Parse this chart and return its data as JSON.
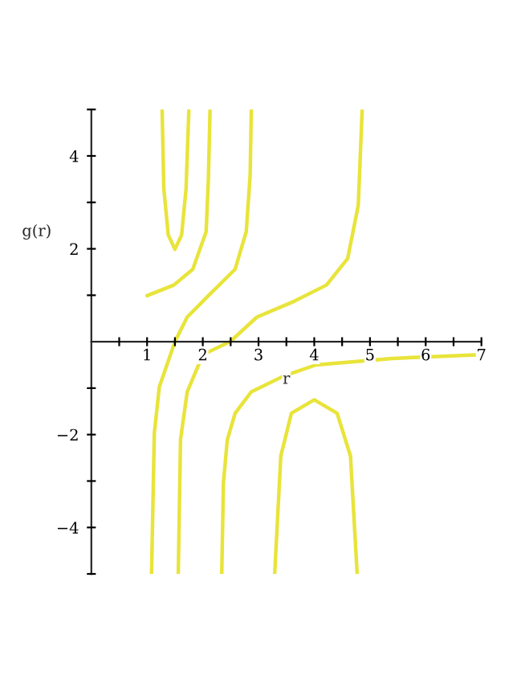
{
  "chart_data": {
    "type": "line",
    "xlabel": "r",
    "ylabel": "g(r)",
    "xlim": [
      0,
      7
    ],
    "ylim": [
      -5,
      5
    ],
    "xticks": [
      {
        "value": 0.5,
        "label": null
      },
      1,
      {
        "value": 1.5,
        "label": null
      },
      2,
      {
        "value": 2.5,
        "label": null
      },
      3,
      {
        "value": 3.5,
        "label": null
      },
      4,
      {
        "value": 4.5,
        "label": null
      },
      5,
      {
        "value": 5.5,
        "label": null
      },
      6,
      {
        "value": 6.5,
        "label": null
      },
      7
    ],
    "yticks": [
      {
        "value": -5,
        "label": null
      },
      {
        "value": -4,
        "label": "−4"
      },
      {
        "value": -3,
        "label": null
      },
      {
        "value": -2,
        "label": "−2"
      },
      {
        "value": -1,
        "label": null
      },
      {
        "value": 1,
        "label": null
      },
      2,
      {
        "value": 3,
        "label": null
      },
      4,
      {
        "value": 5,
        "label": null
      }
    ],
    "grid": false,
    "legend": false,
    "marker": "none",
    "line_style": "solid",
    "series": [
      {
        "color": "#e8e43a",
        "x": [
          1.27,
          1.3,
          1.38,
          1.5,
          1.62,
          1.7,
          1.75
        ],
        "values": [
          5,
          3.3,
          2.3,
          1.99,
          2.3,
          3.3,
          5
        ]
      },
      {
        "color": "#e8e43a",
        "x": [
          1.0,
          1.48,
          1.82,
          2.06,
          2.1,
          2.13
        ],
        "values": [
          0.99,
          1.22,
          1.56,
          2.37,
          3.5,
          5
        ]
      },
      {
        "color": "#e8e43a",
        "x": [
          1.08,
          1.13,
          1.22,
          1.5,
          1.72,
          2.1,
          2.58,
          2.78,
          2.85,
          2.87
        ],
        "values": [
          -5,
          -1.97,
          -0.97,
          0,
          0.53,
          0.99,
          1.56,
          2.37,
          3.6,
          5
        ]
      },
      {
        "color": "#e8e43a",
        "x": [
          1.56,
          1.6,
          1.72,
          2.0,
          2.49,
          2.97,
          3.64,
          4.22,
          4.6,
          4.79,
          4.86
        ],
        "values": [
          -5,
          -2.11,
          -1.08,
          -0.28,
          0,
          0.53,
          0.87,
          1.22,
          1.79,
          2.94,
          5
        ]
      },
      {
        "color": "#e8e43a",
        "x": [
          2.34,
          2.37,
          2.44,
          2.58,
          2.87,
          3.45,
          4.03,
          5.4,
          5.95,
          7.0
        ],
        "values": [
          -5,
          -3.03,
          -2.11,
          -1.54,
          -1.08,
          -0.74,
          -0.5,
          -0.36,
          -0.33,
          -0.28
        ]
      },
      {
        "color": "#e8e43a",
        "x": [
          3.29,
          3.4,
          3.59,
          4.0,
          4.41,
          4.65,
          4.77
        ],
        "values": [
          -5,
          -2.46,
          -1.54,
          -1.25,
          -1.54,
          -2.46,
          -5
        ]
      }
    ]
  }
}
